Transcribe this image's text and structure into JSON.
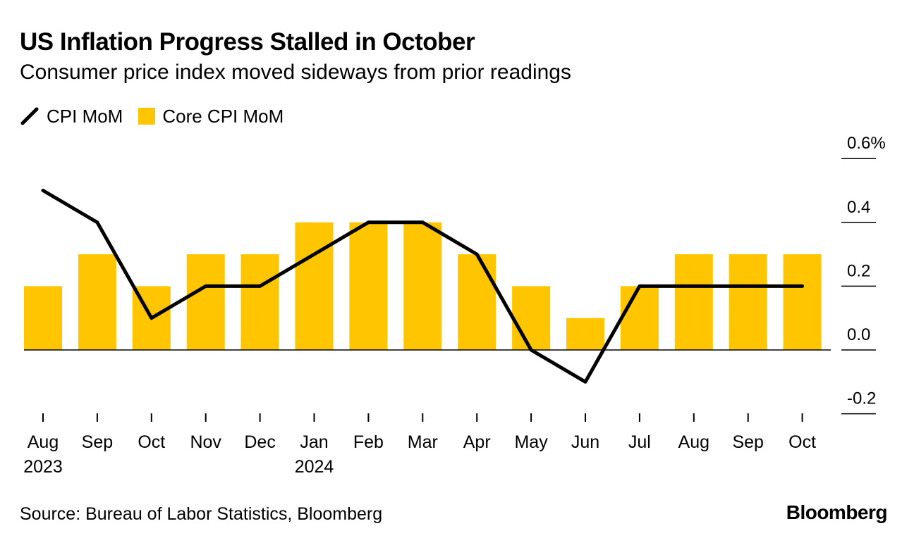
{
  "title": "US Inflation Progress Stalled in October",
  "subtitle": "Consumer price index moved sideways from prior readings",
  "source": "Source: Bureau of Labor Statistics, Bloomberg",
  "brand": "Bloomberg",
  "colors": {
    "bar": "#FFC600",
    "line": "#000000"
  },
  "chart_data": {
    "type": "bar",
    "title": "US Inflation Progress Stalled in October",
    "subtitle": "Consumer price index moved sideways from prior readings",
    "categories": [
      "Aug",
      "Sep",
      "Oct",
      "Nov",
      "Dec",
      "Jan",
      "Feb",
      "Mar",
      "Apr",
      "May",
      "Jun",
      "Jul",
      "Aug",
      "Sep",
      "Oct"
    ],
    "year_labels": [
      "2023",
      "",
      "",
      "",
      "",
      "2024",
      "",
      "",
      "",
      "",
      "",
      "",
      "",
      "",
      ""
    ],
    "series": [
      {
        "name": "Core CPI MoM",
        "type": "bar",
        "values": [
          0.2,
          0.3,
          0.2,
          0.3,
          0.3,
          0.4,
          0.4,
          0.4,
          0.3,
          0.2,
          0.1,
          0.2,
          0.3,
          0.3,
          0.3
        ]
      },
      {
        "name": "CPI MoM",
        "type": "line",
        "values": [
          0.5,
          0.4,
          0.1,
          0.2,
          0.2,
          0.3,
          0.4,
          0.4,
          0.3,
          0.0,
          -0.1,
          0.2,
          0.2,
          0.2,
          0.2
        ]
      }
    ],
    "yticks": [
      {
        "value": 0.6,
        "label": "0.6%"
      },
      {
        "value": 0.4,
        "label": "0.4"
      },
      {
        "value": 0.2,
        "label": "0.2"
      },
      {
        "value": 0.0,
        "label": "0.0"
      },
      {
        "value": -0.2,
        "label": "-0.2"
      }
    ],
    "ylim": [
      -0.2,
      0.6
    ],
    "xlabel": "",
    "ylabel": "",
    "legend": "top-left"
  }
}
